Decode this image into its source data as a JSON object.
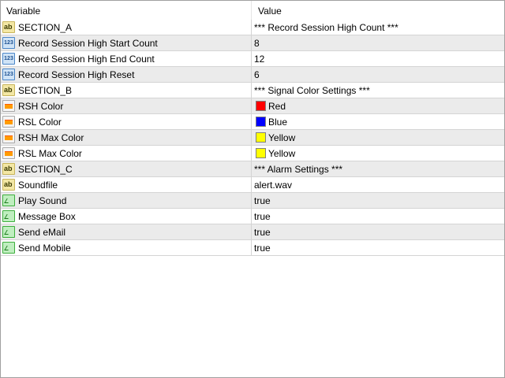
{
  "header": {
    "variable": "Variable",
    "value": "Value"
  },
  "rows": [
    {
      "icon": "string-icon",
      "name": "SECTION_A",
      "value": "*** Record Session High Count ***"
    },
    {
      "icon": "integer-icon",
      "name": "Record Session High Start Count",
      "value": "8"
    },
    {
      "icon": "integer-icon",
      "name": "Record Session High End Count",
      "value": "12"
    },
    {
      "icon": "integer-icon",
      "name": "Record Session High Reset",
      "value": "6"
    },
    {
      "icon": "string-icon",
      "name": "SECTION_B",
      "value": "*** Signal Color Settings ***"
    },
    {
      "icon": "color-icon",
      "name": "RSH Color",
      "value": "Red",
      "swatch": "#ff0000"
    },
    {
      "icon": "color-icon",
      "name": "RSL Color",
      "value": "Blue",
      "swatch": "#0000ff"
    },
    {
      "icon": "color-icon",
      "name": "RSH Max Color",
      "value": "Yellow",
      "swatch": "#ffff00"
    },
    {
      "icon": "color-icon",
      "name": "RSL Max Color",
      "value": "Yellow",
      "swatch": "#ffff00"
    },
    {
      "icon": "string-icon",
      "name": "SECTION_C",
      "value": "*** Alarm Settings ***"
    },
    {
      "icon": "string-icon",
      "name": "Soundfile",
      "value": "alert.wav"
    },
    {
      "icon": "boolean-icon",
      "name": "Play Sound",
      "value": "true"
    },
    {
      "icon": "boolean-icon",
      "name": "Message Box",
      "value": "true"
    },
    {
      "icon": "boolean-icon",
      "name": "Send eMail",
      "value": "true"
    },
    {
      "icon": "boolean-icon",
      "name": "Send Mobile",
      "value": "true"
    }
  ]
}
